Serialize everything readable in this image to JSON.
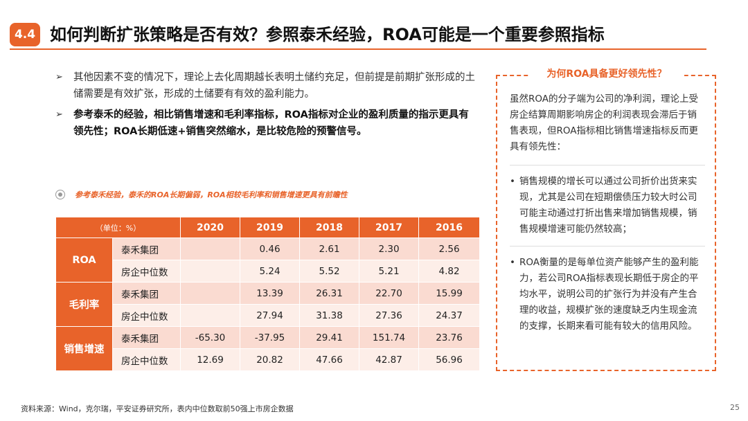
{
  "header": {
    "section_number": "4.4",
    "title": "如何判断扩张策略是否有效？参照泰禾经验，ROA可能是一个重要参照指标"
  },
  "bullets": [
    {
      "marker": "➢",
      "text": "其他因素不变的情况下，理论上去化周期越长表明土储约充足，但前提是前期扩张形成的土储需要是有效扩张，形成的土储要有有效的盈利能力。",
      "bold": false
    },
    {
      "marker": "➢",
      "text": "参考泰禾的经验，相比销售增速和毛利率指标，ROA指标对企业的盈利质量的指示更具有领先性；ROA长期低速+销售突然缩水，是比较危险的预警信号。",
      "bold": true
    }
  ],
  "table_caption": "参考泰禾经验，泰禾的ROA长期偏弱，ROA相较毛利率和销售增速更具有前瞻性",
  "table": {
    "unit_label": "（单位：%）",
    "years": [
      "2020",
      "2019",
      "2018",
      "2017",
      "2016"
    ],
    "groups": [
      {
        "name": "ROA",
        "rows": [
          {
            "label": "泰禾集团",
            "values": [
              "",
              "0.46",
              "2.61",
              "2.30",
              "2.56"
            ]
          },
          {
            "label": "房企中位数",
            "values": [
              "",
              "5.24",
              "5.52",
              "5.21",
              "4.82"
            ]
          }
        ]
      },
      {
        "name": "毛利率",
        "rows": [
          {
            "label": "泰禾集团",
            "values": [
              "",
              "13.39",
              "26.31",
              "22.70",
              "15.99"
            ]
          },
          {
            "label": "房企中位数",
            "values": [
              "",
              "27.94",
              "31.38",
              "27.36",
              "24.37"
            ]
          }
        ]
      },
      {
        "name": "销售增速",
        "rows": [
          {
            "label": "泰禾集团",
            "values": [
              "-65.30",
              "-37.95",
              "29.41",
              "151.74",
              "23.76"
            ]
          },
          {
            "label": "房企中位数",
            "values": [
              "12.69",
              "20.82",
              "47.66",
              "42.87",
              "56.96"
            ]
          }
        ]
      }
    ]
  },
  "sidebar": {
    "title": "为何ROA具备更好领先性？",
    "intro": "虽然ROA的分子端为公司的净利润，理论上受房企结算周期影响房企的利润表现会滞后于销售表现，但ROA指标相比销售增速指标反而更具有领先性：",
    "points": [
      {
        "marker": "•",
        "text": "销售规模的增长可以通过公司折价出货来实现，尤其是公司在短期偿债压力较大时公司可能主动通过打折出售来增加销售规模，销售规模增速可能仍然较高；"
      },
      {
        "marker": "•",
        "text": "ROA衡量的是每单位资产能够产生的盈利能力，若公司ROA指标表现长期低于房企的平均水平，说明公司的扩张行为并没有产生合理的收益，规模扩张的速度缺乏内生现金流的支撑，长期来看可能有较大的信用风险。"
      }
    ]
  },
  "footer": {
    "source": "资料来源：Wind，克尔瑞，平安证券研究所，表内中位数取前50强上市房企数据",
    "page": "25"
  },
  "colors": {
    "accent": "#e8632a",
    "row_dark": "#fadbd1",
    "row_light": "#fdeee8"
  }
}
